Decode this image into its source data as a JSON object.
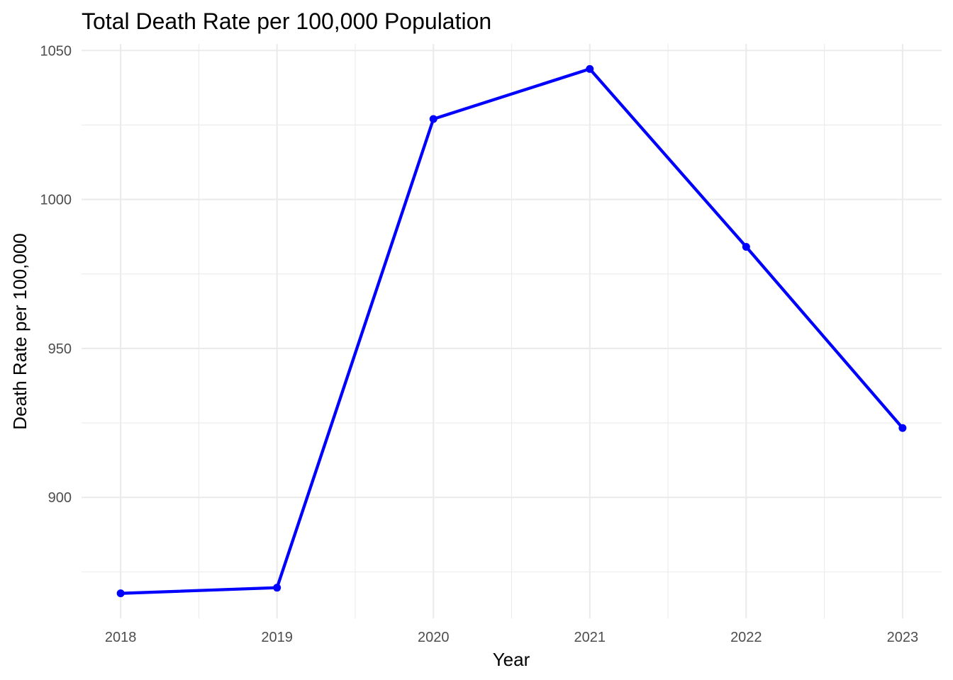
{
  "chart_data": {
    "type": "line",
    "title": "Total Death Rate per 100,000 Population",
    "xlabel": "Year",
    "ylabel": "Death Rate per 100,000",
    "x": [
      2018,
      2019,
      2020,
      2021,
      2022,
      2023
    ],
    "x_tick_labels": [
      "2018",
      "2019",
      "2020",
      "2021",
      "2022",
      "2023"
    ],
    "series": [
      {
        "values": [
          867.8,
          869.7,
          1027.0,
          1043.8,
          984.1,
          923.3
        ],
        "color": "#0000ff"
      }
    ],
    "y_ticks": [
      900,
      950,
      1000,
      1050
    ],
    "y_tick_labels": [
      "900",
      "950",
      "1000",
      "1050"
    ],
    "xlim": [
      2017.75,
      2023.25
    ],
    "ylim": [
      859.4,
      1052.2
    ],
    "grid": true,
    "gridline_color": "#ebebeb",
    "legend": "none"
  }
}
